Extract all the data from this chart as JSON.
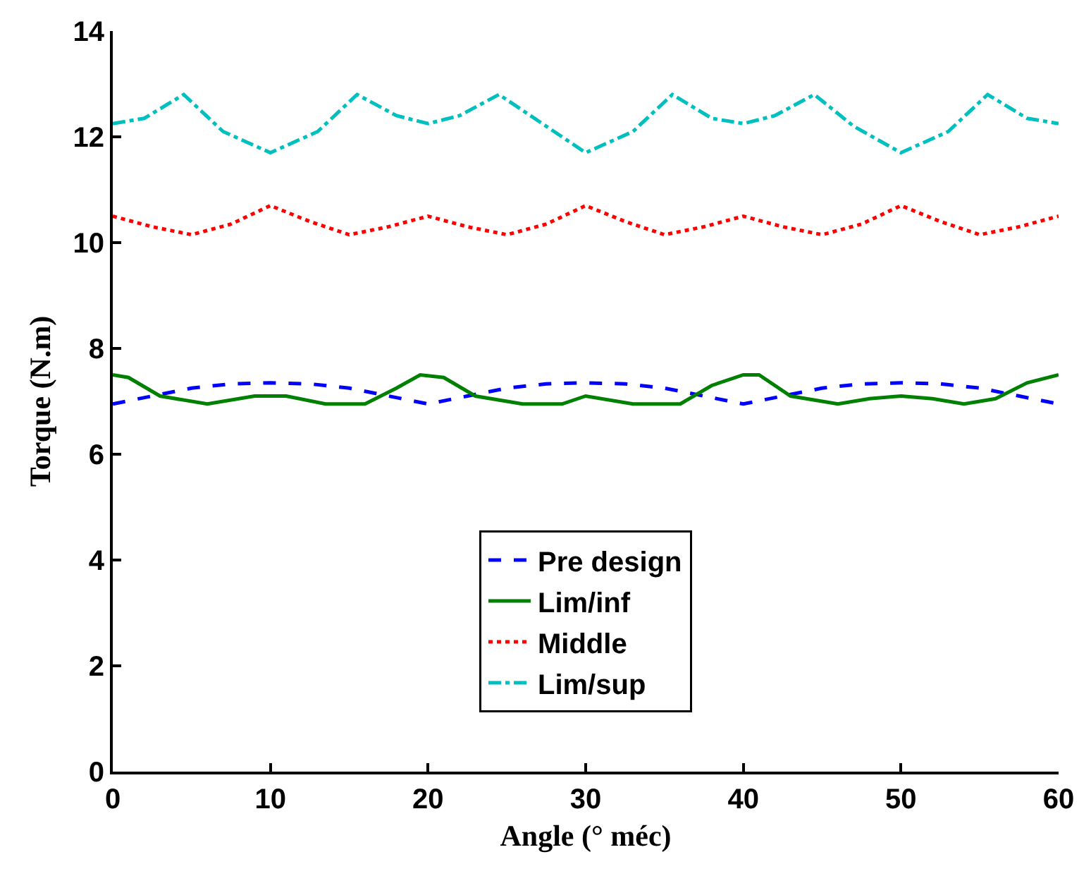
{
  "chart_data": {
    "type": "line",
    "xlabel": "Angle (° méc)",
    "ylabel": "Torque (N.m)",
    "xlim": [
      0,
      60
    ],
    "xticks": [
      0,
      10,
      20,
      30,
      40,
      50,
      60
    ],
    "ylim": [
      0,
      14
    ],
    "yticks": [
      0,
      2,
      4,
      6,
      8,
      10,
      12,
      14
    ],
    "grid": false,
    "legend": "bottom",
    "series": [
      {
        "name": "Pre design",
        "color": "#0000ff",
        "line_style": "dashed",
        "x": [
          0,
          2.5,
          5,
          7.5,
          10,
          12.5,
          15,
          17.5,
          20,
          22.5,
          25,
          27.5,
          30,
          32.5,
          35,
          37.5,
          40,
          42.5,
          45,
          47.5,
          50,
          52.5,
          55,
          57.5,
          60
        ],
        "values": [
          6.95,
          7.1,
          7.25,
          7.33,
          7.35,
          7.33,
          7.25,
          7.1,
          6.95,
          7.1,
          7.25,
          7.33,
          7.35,
          7.33,
          7.25,
          7.1,
          6.95,
          7.1,
          7.25,
          7.33,
          7.35,
          7.33,
          7.25,
          7.1,
          6.95
        ]
      },
      {
        "name": "Lim/inf",
        "color": "#008000",
        "line_style": "solid",
        "x": [
          0,
          1,
          3,
          6,
          9,
          11,
          13.5,
          16,
          18,
          19.5,
          21,
          23,
          26,
          28.5,
          30,
          33,
          36,
          38,
          40,
          41,
          43,
          46,
          48,
          50,
          52,
          54,
          56,
          58,
          60
        ],
        "values": [
          7.5,
          7.45,
          7.1,
          6.95,
          7.1,
          7.1,
          6.95,
          6.95,
          7.25,
          7.5,
          7.45,
          7.1,
          6.95,
          6.95,
          7.1,
          6.95,
          6.95,
          7.3,
          7.5,
          7.5,
          7.1,
          6.95,
          7.05,
          7.1,
          7.05,
          6.95,
          7.05,
          7.35,
          7.5
        ]
      },
      {
        "name": "Middle",
        "color": "#ff0000",
        "line_style": "dotted",
        "x": [
          0,
          2.5,
          5,
          7.5,
          10,
          12.5,
          15,
          17.5,
          20,
          22.5,
          25,
          27.5,
          30,
          32.5,
          35,
          37.5,
          40,
          42.5,
          45,
          47.5,
          50,
          52.5,
          55,
          57.5,
          60
        ],
        "values": [
          10.5,
          10.3,
          10.15,
          10.35,
          10.7,
          10.4,
          10.15,
          10.3,
          10.5,
          10.3,
          10.15,
          10.35,
          10.7,
          10.4,
          10.15,
          10.3,
          10.5,
          10.3,
          10.15,
          10.35,
          10.7,
          10.4,
          10.15,
          10.3,
          10.5
        ]
      },
      {
        "name": "Lim/sup",
        "color": "#00bfbf",
        "line_style": "dashdot",
        "x": [
          0,
          2,
          4.5,
          7,
          10,
          13,
          15.5,
          18,
          20,
          22,
          24.5,
          27,
          30,
          33,
          35.5,
          38,
          40,
          42,
          44.5,
          47,
          50,
          53,
          55.5,
          58,
          60
        ],
        "values": [
          12.25,
          12.35,
          12.8,
          12.1,
          11.7,
          12.1,
          12.8,
          12.4,
          12.25,
          12.4,
          12.8,
          12.3,
          11.7,
          12.1,
          12.8,
          12.35,
          12.25,
          12.4,
          12.8,
          12.2,
          11.7,
          12.1,
          12.8,
          12.35,
          12.25
        ]
      }
    ]
  }
}
